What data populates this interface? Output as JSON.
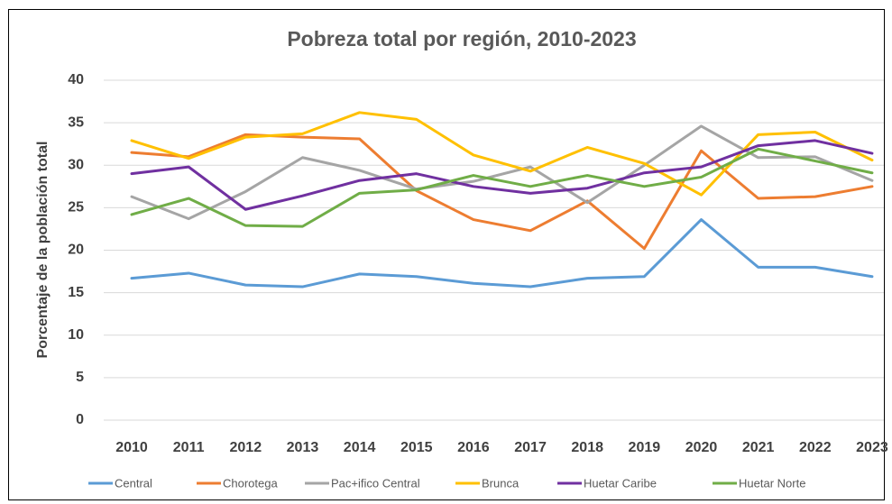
{
  "chart_data": {
    "type": "line",
    "title": "Pobreza total por región, 2010-2023",
    "y_label": "Porcentaje de la población total",
    "categories": [
      "2010",
      "2011",
      "2012",
      "2013",
      "2014",
      "2015",
      "2016",
      "2017",
      "2018",
      "2019",
      "2020",
      "2021",
      "2022",
      "2023"
    ],
    "ylim": [
      0,
      40
    ],
    "yticks": [
      0,
      5,
      10,
      15,
      20,
      25,
      30,
      35,
      40
    ],
    "grid": true,
    "legend": "bottom",
    "series": [
      {
        "name": "Central",
        "color": "#5b9bd5",
        "values": [
          16.7,
          17.3,
          15.9,
          15.7,
          17.2,
          16.9,
          16.1,
          15.7,
          16.7,
          16.9,
          23.6,
          18.0,
          18.0,
          16.9
        ]
      },
      {
        "name": "Chorotega",
        "color": "#ed7d31",
        "values": [
          31.5,
          31.0,
          33.6,
          33.3,
          33.1,
          27.0,
          23.6,
          22.3,
          25.8,
          20.2,
          31.7,
          26.1,
          26.3,
          27.5
        ]
      },
      {
        "name": "Pac+ifico Central",
        "color": "#a5a5a5",
        "values": [
          26.3,
          23.7,
          26.9,
          30.9,
          29.4,
          27.2,
          28.1,
          29.8,
          25.6,
          30.0,
          34.6,
          30.9,
          31.0,
          28.2
        ]
      },
      {
        "name": "Brunca",
        "color": "#ffc000",
        "values": [
          32.9,
          30.8,
          33.3,
          33.7,
          36.2,
          35.4,
          31.2,
          29.3,
          32.1,
          30.2,
          26.5,
          33.6,
          33.9,
          30.6
        ]
      },
      {
        "name": "Huetar Caribe",
        "color": "#7030a0",
        "values": [
          29.0,
          29.8,
          24.8,
          26.4,
          28.2,
          29.0,
          27.5,
          26.7,
          27.3,
          29.1,
          29.8,
          32.3,
          32.9,
          31.4
        ]
      },
      {
        "name": "Huetar Norte",
        "color": "#70ad47",
        "values": [
          24.2,
          26.1,
          22.9,
          22.8,
          26.7,
          27.1,
          28.8,
          27.5,
          28.8,
          27.5,
          28.6,
          31.9,
          30.5,
          29.1
        ]
      }
    ]
  }
}
